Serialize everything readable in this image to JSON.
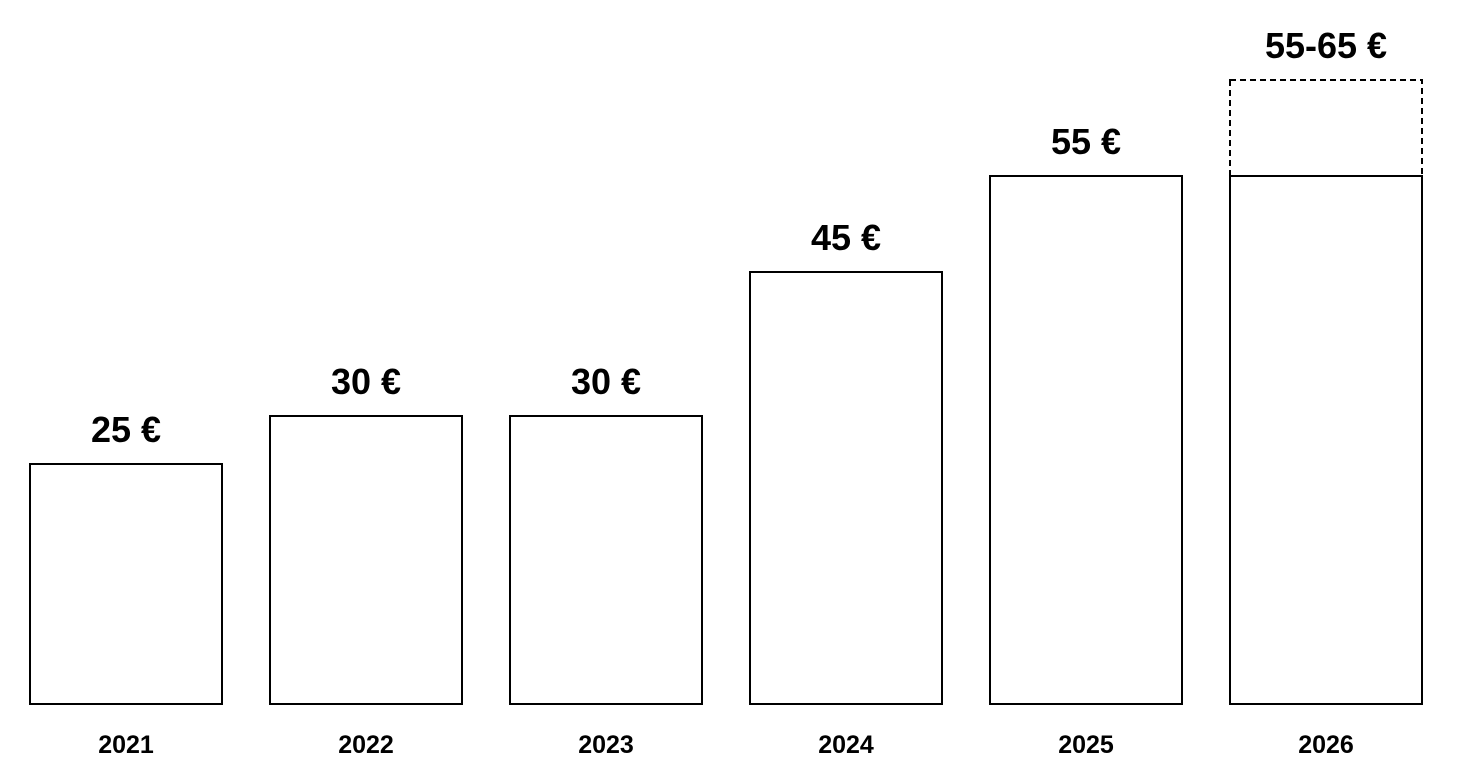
{
  "chart_data": {
    "type": "bar",
    "title": "",
    "xlabel": "",
    "ylabel": "",
    "categories": [
      "2021",
      "2022",
      "2023",
      "2024",
      "2025",
      "2026"
    ],
    "values": [
      25,
      30,
      30,
      45,
      55,
      55
    ],
    "range_high": [
      null,
      null,
      null,
      null,
      null,
      65
    ],
    "data_labels": [
      "25 €",
      "30 €",
      "30 €",
      "45 €",
      "55 €",
      "55-65 €"
    ],
    "ylim": [
      0,
      65
    ],
    "grid": false,
    "legend": "none",
    "colors": {
      "bar_fill": "#ffffff",
      "bar_stroke": "#000000",
      "text": "#000000"
    }
  }
}
